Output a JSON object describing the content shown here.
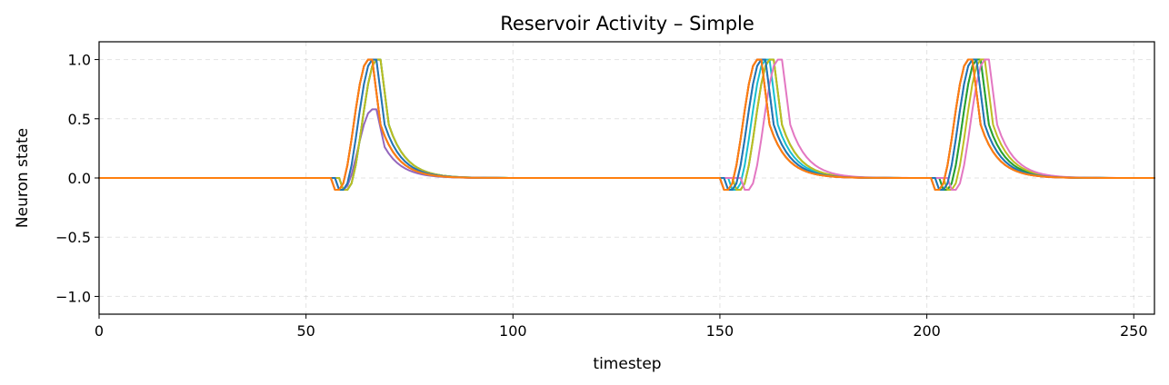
{
  "chart_data": {
    "type": "line",
    "title": "Reservoir Activity – Simple",
    "xlabel": "timestep",
    "ylabel": "Neuron state",
    "xlim": [
      0,
      255
    ],
    "ylim": [
      -1.15,
      1.15
    ],
    "xticks": [
      0,
      50,
      100,
      150,
      200,
      250
    ],
    "xtick_labels": [
      "0",
      "50",
      "100",
      "150",
      "200",
      "250"
    ],
    "yticks": [
      -1.0,
      -0.5,
      0.0,
      0.5,
      1.0
    ],
    "ytick_labels": [
      "−1.0",
      "−0.5",
      "0.0",
      "0.5",
      "1.0"
    ],
    "grid": true,
    "legend": false,
    "series": [
      {
        "color": "#d62728",
        "pulses": [
          {
            "onset": 56,
            "peak": 1.0
          },
          {
            "onset": 150,
            "peak": 1.0
          },
          {
            "onset": 201,
            "peak": 1.0
          }
        ]
      },
      {
        "color": "#8c564b",
        "pulses": [
          {
            "onset": 56,
            "peak": 1.0
          },
          {
            "onset": 150,
            "peak": 1.0
          },
          {
            "onset": 201,
            "peak": 1.0
          }
        ]
      },
      {
        "color": "#9467bd",
        "pulses": [
          {
            "onset": 57,
            "peak": 0.58
          },
          {
            "onset": 151,
            "peak": 1.0
          },
          {
            "onset": 202,
            "peak": 1.0
          }
        ]
      },
      {
        "color": "#17becf",
        "pulses": [
          {
            "onset": 58,
            "peak": 1.0
          },
          {
            "onset": 152,
            "peak": 1.0
          },
          {
            "onset": 203,
            "peak": 1.0
          }
        ]
      },
      {
        "color": "#2ca02c",
        "pulses": [
          {
            "onset": 58,
            "peak": 1.0
          },
          {
            "onset": 153,
            "peak": 1.0
          },
          {
            "onset": 203,
            "peak": 1.0
          }
        ]
      },
      {
        "color": "#bcbd22",
        "pulses": [
          {
            "onset": 58,
            "peak": 1.0
          },
          {
            "onset": 153,
            "peak": 1.0
          },
          {
            "onset": 204,
            "peak": 1.0
          }
        ]
      },
      {
        "color": "#e377c2",
        "pulses": [
          {
            "onset": 57,
            "peak": 1.0
          },
          {
            "onset": 155,
            "peak": 1.0
          },
          {
            "onset": 205,
            "peak": 1.0
          }
        ]
      },
      {
        "color": "#1f77b4",
        "pulses": [
          {
            "onset": 57,
            "peak": 1.0
          },
          {
            "onset": 151,
            "peak": 1.0
          },
          {
            "onset": 202,
            "peak": 1.0
          }
        ]
      },
      {
        "color": "#ff7f0e",
        "pulses": [
          {
            "onset": 56,
            "peak": 1.0
          },
          {
            "onset": 150,
            "peak": 1.0
          },
          {
            "onset": 201,
            "peak": 1.0
          }
        ]
      }
    ]
  }
}
